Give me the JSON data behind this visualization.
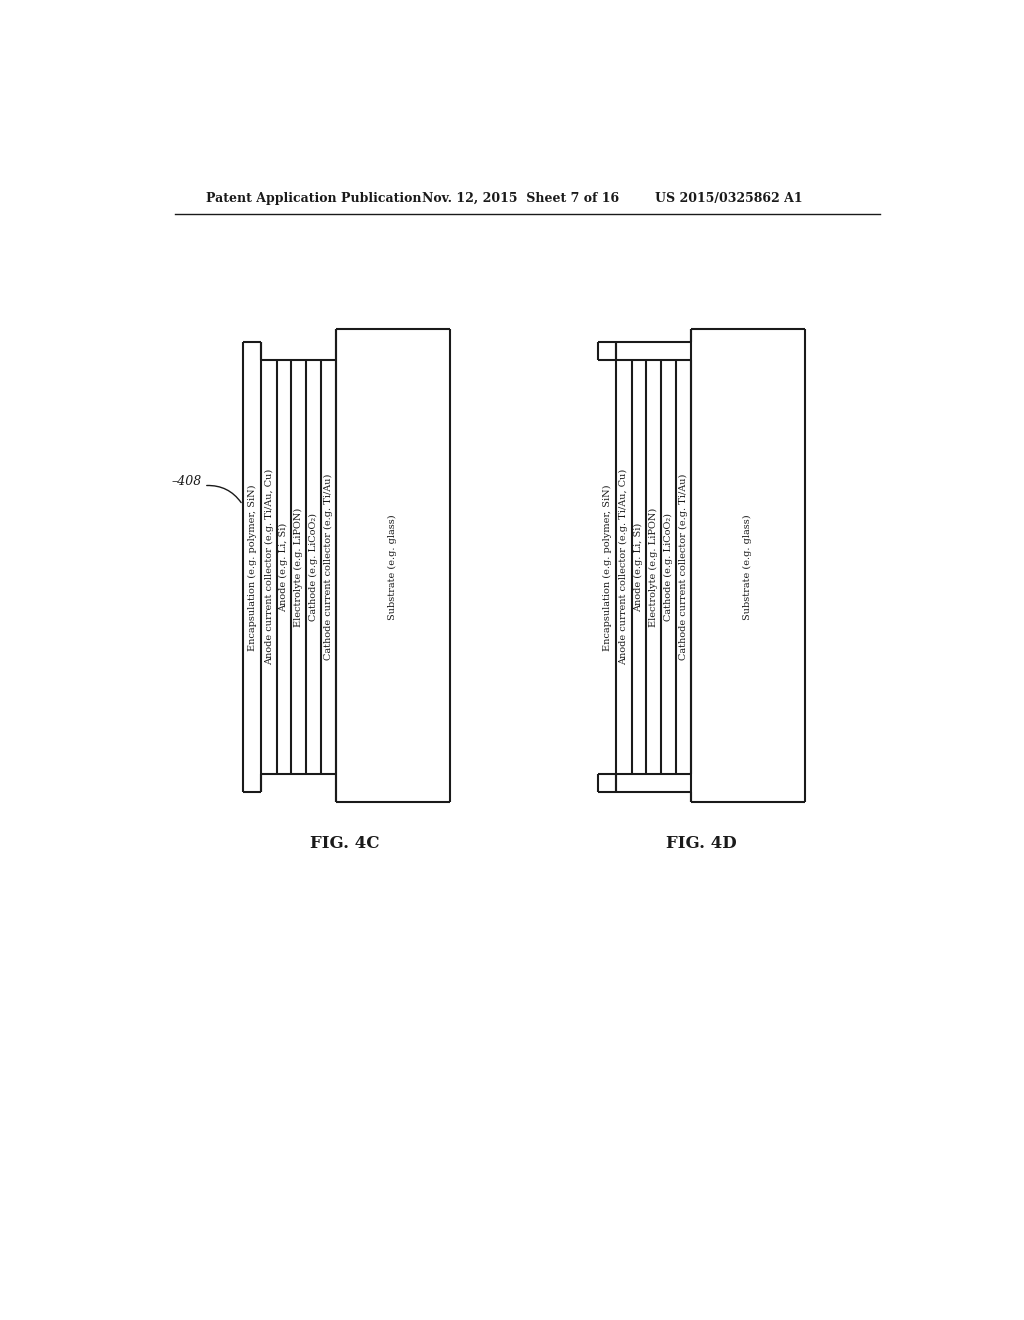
{
  "header_left": "Patent Application Publication",
  "header_mid": "Nov. 12, 2015  Sheet 7 of 16",
  "header_right": "US 2015/0325862 A1",
  "fig_c_label": "FIG. 4C",
  "fig_d_label": "FIG. 4D",
  "label_408": "–408",
  "layers": [
    "Encapsulation (e.g. polymer, SiN)",
    "Anode current collector (e.g. Ti/Au, Cu)",
    "Anode (e.g. Li, Si)",
    "Electrolyte (e.g. LiPON)",
    "Cathode (e.g. LiCoO₂)",
    "Cathode current collector (e.g. Ti/Au)",
    "Substrate (e.g. glass)"
  ],
  "bg_color": "#ffffff",
  "line_color": "#1a1a1a",
  "text_color": "#1a1a1a"
}
